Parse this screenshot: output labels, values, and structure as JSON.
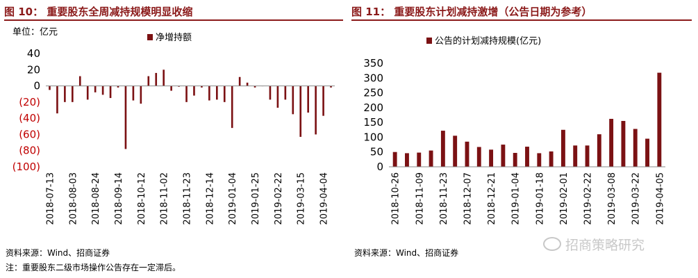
{
  "figures": {
    "left_title": "图 10： 重要股东全周减持规模明显收缩",
    "right_title": "图 11： 重要股东计划减持激增（公告日期为参考）",
    "left_source": "资料来源：Wind、招商证券",
    "right_source": "资料来源：Wind、招商证券",
    "note": "注：重要股东二级市场操作公告存在一定滞后。",
    "watermark": "招商策略研究"
  },
  "colors": {
    "bar": "#7b1113",
    "title": "#8b1a1a",
    "negative_tick": "#c00000"
  },
  "chart_data": [
    {
      "type": "bar",
      "unit_label": "单位：亿元",
      "legend": [
        "净增持额"
      ],
      "legend_position": "top",
      "ylim": [
        -100,
        40
      ],
      "yticks": [
        40,
        20,
        0,
        -20,
        -40,
        -60,
        -80,
        -100
      ],
      "ytick_labels": [
        "40",
        "20",
        "0",
        "(20)",
        "(40)",
        "(60)",
        "(80)",
        "(100)"
      ],
      "xtick_labels": [
        "2018-07-13",
        "2018-08-03",
        "2018-08-24",
        "2018-09-14",
        "2018-10-12",
        "2018-11-02",
        "2018-11-23",
        "2018-12-14",
        "2019-01-04",
        "2019-01-25",
        "2019-02-22",
        "2019-03-15",
        "2019-04-04"
      ],
      "xtick_every": 3,
      "series": [
        {
          "name": "净增持额",
          "values": [
            -5,
            -34,
            -20,
            -20,
            12,
            -17,
            -8,
            -11,
            -15,
            -2,
            -78,
            -18,
            -22,
            12,
            16,
            20,
            -6,
            -1,
            -20,
            -12,
            -2,
            -18,
            -17,
            -20,
            -52,
            11,
            4,
            -2,
            0,
            -17,
            -27,
            -17,
            -35,
            -63,
            -33,
            -60,
            -37,
            -2
          ]
        }
      ],
      "grid": false
    },
    {
      "type": "bar",
      "legend": [
        "公告的计划减持规模(亿元)"
      ],
      "legend_position": "top",
      "ylim": [
        0,
        350
      ],
      "yticks": [
        0,
        50,
        100,
        150,
        200,
        250,
        300,
        350
      ],
      "xtick_labels": [
        "2018-10-26",
        "2018-11-09",
        "2018-11-23",
        "2018-12-07",
        "2018-12-21",
        "2019-01-04",
        "2019-01-18",
        "2019-02-01",
        "2019-02-22",
        "2019-03-08",
        "2019-03-22",
        "2019-04-05"
      ],
      "xtick_every": 2,
      "series": [
        {
          "name": "公告的计划减持规模(亿元)",
          "values": [
            50,
            46,
            48,
            55,
            122,
            105,
            85,
            67,
            58,
            75,
            47,
            68,
            46,
            52,
            125,
            72,
            72,
            110,
            162,
            155,
            128,
            95,
            318
          ]
        }
      ],
      "grid": false
    }
  ]
}
